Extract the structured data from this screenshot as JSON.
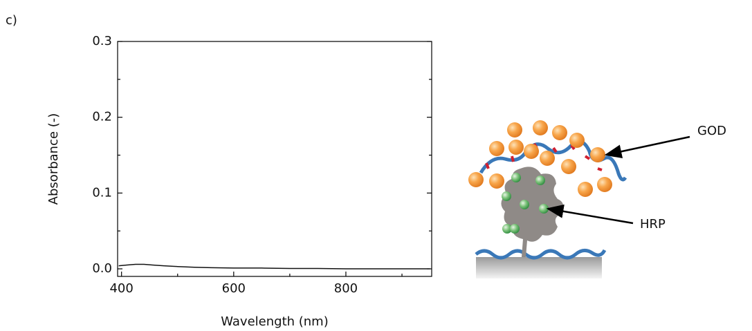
{
  "panel_label": "c)",
  "chart_data": {
    "type": "line",
    "x_label": "Wavelength (nm)",
    "y_label": "Absorbance (-)",
    "x": [
      395,
      410,
      425,
      440,
      455,
      475,
      500,
      530,
      560,
      600,
      650,
      700,
      750,
      800,
      850,
      900,
      950
    ],
    "series": [
      {
        "name": null,
        "color": "#111111",
        "values": [
          0.004,
          0.005,
          0.006,
          0.006,
          0.005,
          0.004,
          0.003,
          0.002,
          0.0015,
          0.001,
          0.001,
          0.0005,
          0.0005,
          0.0,
          0.0,
          0.0,
          0.0
        ]
      }
    ],
    "xlim": [
      393,
      953
    ],
    "ylim": [
      -0.01,
      0.3
    ],
    "xticks": [
      400,
      600,
      800
    ],
    "yticks": [
      {
        "value": 0,
        "label": "0.0"
      },
      0.1,
      0.2,
      0.3
    ],
    "xminorticks": [
      500,
      700,
      900
    ],
    "yminorticks": [
      0.05,
      0.15,
      0.25
    ]
  },
  "diagram": {
    "labels": [
      "GOD",
      "HRP"
    ]
  }
}
